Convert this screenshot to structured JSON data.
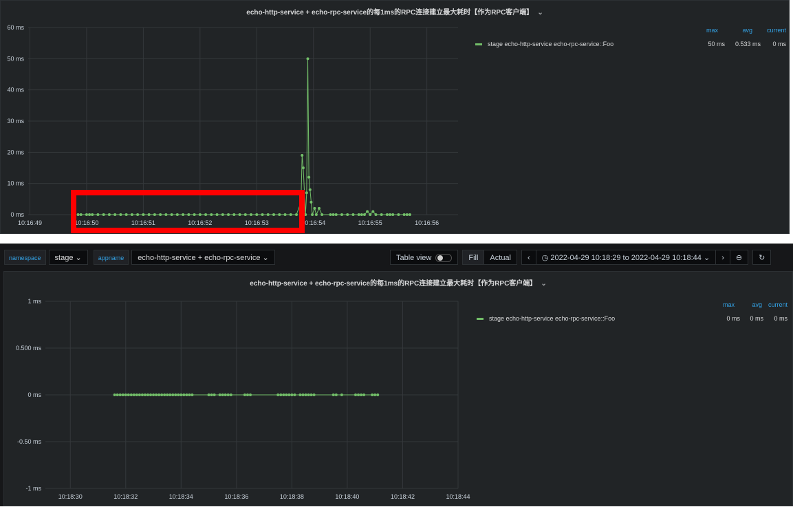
{
  "top_panel": {
    "title": "echo-http-service + echo-rpc-service的每1ms的RPC连接建立最大耗时【作为RPC客户端】",
    "legend": {
      "headers": {
        "max": "max",
        "avg": "avg",
        "current": "current"
      },
      "series": "stage echo-http-service echo-rpc-service::Foo",
      "max": "50 ms",
      "avg": "0.533 ms",
      "current": "0 ms"
    }
  },
  "toolbar": {
    "namespace_label": "namespace",
    "namespace_value": "stage",
    "appname_label": "appname",
    "appname_value": "echo-http-service + echo-rpc-service",
    "table_view": "Table view",
    "fill": "Fill",
    "actual": "Actual",
    "time_range": "2022-04-29 10:18:29 to 2022-04-29 10:18:44"
  },
  "bottom_panel": {
    "title": "echo-http-service + echo-rpc-service的每1ms的RPC连接建立最大耗时【作为RPC客户端】",
    "legend": {
      "headers": {
        "max": "max",
        "avg": "avg",
        "current": "current"
      },
      "series": "stage echo-http-service echo-rpc-service::Foo",
      "max": "0 ms",
      "avg": "0 ms",
      "current": "0 ms"
    }
  },
  "chart_data": [
    {
      "type": "line",
      "series_color": "#73bf69",
      "grid": true,
      "legend": "right",
      "highlight_box_color": "#ff0000",
      "ylim": [
        0,
        60
      ],
      "yticks": [
        "0 ms",
        "10 ms",
        "20 ms",
        "30 ms",
        "40 ms",
        "50 ms",
        "60 ms"
      ],
      "ytick_values": [
        0,
        10,
        20,
        30,
        40,
        50,
        60
      ],
      "xticks": [
        "10:16:49",
        "10:16:50",
        "10:16:51",
        "10:16:52",
        "10:16:53",
        "10:16:54",
        "10:16:55",
        "10:16:56"
      ],
      "xlim": [
        "10:16:48.97",
        "10:16:56.55"
      ],
      "series": [
        {
          "name": "stage echo-http-service echo-rpc-service::Foo",
          "points": [
            [
              "10:16:49.85",
              0
            ],
            [
              "10:16:49.9",
              0
            ],
            [
              "10:16:50.0",
              0
            ],
            [
              "10:16:50.05",
              0
            ],
            [
              "10:16:50.1",
              0
            ],
            [
              "10:16:50.2",
              0
            ],
            [
              "10:16:50.3",
              0
            ],
            [
              "10:16:50.4",
              0
            ],
            [
              "10:16:50.5",
              0
            ],
            [
              "10:16:50.6",
              0
            ],
            [
              "10:16:50.7",
              0
            ],
            [
              "10:16:50.8",
              0
            ],
            [
              "10:16:50.9",
              0
            ],
            [
              "10:16:51.0",
              0
            ],
            [
              "10:16:51.1",
              0
            ],
            [
              "10:16:51.2",
              0
            ],
            [
              "10:16:51.3",
              0
            ],
            [
              "10:16:51.4",
              0
            ],
            [
              "10:16:51.5",
              0
            ],
            [
              "10:16:51.6",
              0
            ],
            [
              "10:16:51.7",
              0
            ],
            [
              "10:16:51.8",
              0
            ],
            [
              "10:16:51.9",
              0
            ],
            [
              "10:16:52.0",
              0
            ],
            [
              "10:16:52.1",
              0
            ],
            [
              "10:16:52.2",
              0
            ],
            [
              "10:16:52.3",
              0
            ],
            [
              "10:16:52.4",
              0
            ],
            [
              "10:16:52.5",
              0
            ],
            [
              "10:16:52.6",
              0
            ],
            [
              "10:16:52.7",
              0
            ],
            [
              "10:16:52.8",
              0
            ],
            [
              "10:16:52.9",
              0
            ],
            [
              "10:16:53.0",
              0
            ],
            [
              "10:16:53.1",
              0
            ],
            [
              "10:16:53.2",
              0
            ],
            [
              "10:16:53.3",
              0
            ],
            [
              "10:16:53.4",
              0
            ],
            [
              "10:16:53.5",
              0
            ],
            [
              "10:16:53.6",
              0
            ],
            [
              "10:16:53.7",
              0
            ],
            [
              "10:16:53.78",
              4
            ],
            [
              "10:16:53.80",
              19
            ],
            [
              "10:16:53.82",
              15
            ],
            [
              "10:16:53.86",
              0
            ],
            [
              "10:16:53.88",
              7
            ],
            [
              "10:16:53.90",
              50
            ],
            [
              "10:16:53.92",
              12
            ],
            [
              "10:16:53.94",
              8
            ],
            [
              "10:16:53.96",
              4
            ],
            [
              "10:16:53.98",
              0
            ],
            [
              "10:16:54.02",
              2
            ],
            [
              "10:16:54.05",
              0
            ],
            [
              "10:16:54.1",
              2
            ],
            [
              "10:16:54.15",
              0
            ],
            [
              "10:16:54.3",
              0
            ],
            [
              "10:16:54.35",
              0
            ],
            [
              "10:16:54.4",
              0
            ],
            [
              "10:16:54.5",
              0
            ],
            [
              "10:16:54.6",
              0
            ],
            [
              "10:16:54.7",
              0
            ],
            [
              "10:16:54.8",
              0
            ],
            [
              "10:16:54.85",
              0
            ],
            [
              "10:16:54.9",
              0
            ],
            [
              "10:16:54.95",
              1
            ],
            [
              "10:16:55.0",
              0
            ],
            [
              "10:16:55.05",
              1
            ],
            [
              "10:16:55.1",
              0
            ],
            [
              "10:16:55.2",
              0
            ],
            [
              "10:16:55.3",
              0
            ],
            [
              "10:16:55.35",
              0
            ],
            [
              "10:16:55.4",
              0
            ],
            [
              "10:16:55.5",
              0
            ],
            [
              "10:16:55.6",
              0
            ],
            [
              "10:16:55.65",
              0
            ],
            [
              "10:16:55.7",
              0
            ]
          ]
        }
      ]
    },
    {
      "type": "line",
      "series_color": "#73bf69",
      "grid": true,
      "legend": "right",
      "ylim": [
        -1,
        1
      ],
      "yticks": [
        "-1 ms",
        "-0.50 ms",
        "0 ms",
        "0.500 ms",
        "1 ms"
      ],
      "ytick_values": [
        -1,
        -0.5,
        0,
        0.5,
        1
      ],
      "xticks": [
        "10:18:30",
        "10:18:32",
        "10:18:34",
        "10:18:36",
        "10:18:38",
        "10:18:40",
        "10:18:42",
        "10:18:44"
      ],
      "xlim": [
        "10:18:29.1",
        "10:18:44.0"
      ],
      "series": [
        {
          "name": "stage echo-http-service echo-rpc-service::Foo",
          "points": [
            [
              "10:18:31.6",
              0
            ],
            [
              "10:18:31.7",
              0
            ],
            [
              "10:18:31.8",
              0
            ],
            [
              "10:18:31.9",
              0
            ],
            [
              "10:18:32.0",
              0
            ],
            [
              "10:18:32.1",
              0
            ],
            [
              "10:18:32.2",
              0
            ],
            [
              "10:18:32.3",
              0
            ],
            [
              "10:18:32.4",
              0
            ],
            [
              "10:18:32.5",
              0
            ],
            [
              "10:18:32.6",
              0
            ],
            [
              "10:18:32.7",
              0
            ],
            [
              "10:18:32.8",
              0
            ],
            [
              "10:18:32.9",
              0
            ],
            [
              "10:18:33.0",
              0
            ],
            [
              "10:18:33.1",
              0
            ],
            [
              "10:18:33.2",
              0
            ],
            [
              "10:18:33.3",
              0
            ],
            [
              "10:18:33.4",
              0
            ],
            [
              "10:18:33.5",
              0
            ],
            [
              "10:18:33.6",
              0
            ],
            [
              "10:18:33.7",
              0
            ],
            [
              "10:18:33.8",
              0
            ],
            [
              "10:18:33.9",
              0
            ],
            [
              "10:18:34.0",
              0
            ],
            [
              "10:18:34.1",
              0
            ],
            [
              "10:18:34.2",
              0
            ],
            [
              "10:18:34.3",
              0
            ],
            [
              "10:18:34.4",
              0
            ],
            [
              "10:18:35.0",
              0
            ],
            [
              "10:18:35.1",
              0
            ],
            [
              "10:18:35.2",
              0
            ],
            [
              "10:18:35.4",
              0
            ],
            [
              "10:18:35.5",
              0
            ],
            [
              "10:18:35.6",
              0
            ],
            [
              "10:18:35.7",
              0
            ],
            [
              "10:18:35.8",
              0
            ],
            [
              "10:18:36.3",
              0
            ],
            [
              "10:18:36.4",
              0
            ],
            [
              "10:18:36.5",
              0
            ],
            [
              "10:18:37.5",
              0
            ],
            [
              "10:18:37.6",
              0
            ],
            [
              "10:18:37.7",
              0
            ],
            [
              "10:18:37.8",
              0
            ],
            [
              "10:18:37.9",
              0
            ],
            [
              "10:18:38.0",
              0
            ],
            [
              "10:18:38.1",
              0
            ],
            [
              "10:18:38.3",
              0
            ],
            [
              "10:18:38.4",
              0
            ],
            [
              "10:18:38.5",
              0
            ],
            [
              "10:18:38.6",
              0
            ],
            [
              "10:18:38.7",
              0
            ],
            [
              "10:18:38.8",
              0
            ],
            [
              "10:18:39.5",
              0
            ],
            [
              "10:18:39.6",
              0
            ],
            [
              "10:18:39.8",
              0
            ],
            [
              "10:18:40.3",
              0
            ],
            [
              "10:18:40.4",
              0
            ],
            [
              "10:18:40.5",
              0
            ],
            [
              "10:18:40.6",
              0
            ],
            [
              "10:18:40.9",
              0
            ],
            [
              "10:18:41.0",
              0
            ],
            [
              "10:18:41.1",
              0
            ]
          ]
        }
      ]
    }
  ]
}
